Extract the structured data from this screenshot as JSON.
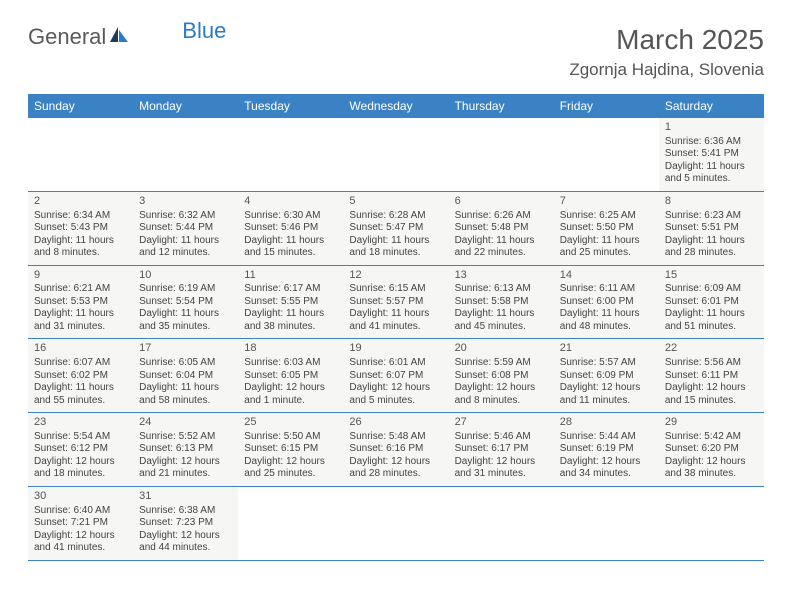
{
  "logo": {
    "part1": "General",
    "part2": "Blue"
  },
  "title": "March 2025",
  "location": "Zgornja Hajdina, Slovenia",
  "colors": {
    "header_bg": "#3b82c4",
    "header_fg": "#ffffff",
    "cell_bg": "#f6f6f5",
    "border": "#3b82c4",
    "text": "#444444",
    "title": "#555555"
  },
  "weekdays": [
    "Sunday",
    "Monday",
    "Tuesday",
    "Wednesday",
    "Thursday",
    "Friday",
    "Saturday"
  ],
  "weeks": [
    [
      null,
      null,
      null,
      null,
      null,
      null,
      {
        "n": "1",
        "sr": "Sunrise: 6:36 AM",
        "ss": "Sunset: 5:41 PM",
        "d1": "Daylight: 11 hours",
        "d2": "and 5 minutes."
      }
    ],
    [
      {
        "n": "2",
        "sr": "Sunrise: 6:34 AM",
        "ss": "Sunset: 5:43 PM",
        "d1": "Daylight: 11 hours",
        "d2": "and 8 minutes."
      },
      {
        "n": "3",
        "sr": "Sunrise: 6:32 AM",
        "ss": "Sunset: 5:44 PM",
        "d1": "Daylight: 11 hours",
        "d2": "and 12 minutes."
      },
      {
        "n": "4",
        "sr": "Sunrise: 6:30 AM",
        "ss": "Sunset: 5:46 PM",
        "d1": "Daylight: 11 hours",
        "d2": "and 15 minutes."
      },
      {
        "n": "5",
        "sr": "Sunrise: 6:28 AM",
        "ss": "Sunset: 5:47 PM",
        "d1": "Daylight: 11 hours",
        "d2": "and 18 minutes."
      },
      {
        "n": "6",
        "sr": "Sunrise: 6:26 AM",
        "ss": "Sunset: 5:48 PM",
        "d1": "Daylight: 11 hours",
        "d2": "and 22 minutes."
      },
      {
        "n": "7",
        "sr": "Sunrise: 6:25 AM",
        "ss": "Sunset: 5:50 PM",
        "d1": "Daylight: 11 hours",
        "d2": "and 25 minutes."
      },
      {
        "n": "8",
        "sr": "Sunrise: 6:23 AM",
        "ss": "Sunset: 5:51 PM",
        "d1": "Daylight: 11 hours",
        "d2": "and 28 minutes."
      }
    ],
    [
      {
        "n": "9",
        "sr": "Sunrise: 6:21 AM",
        "ss": "Sunset: 5:53 PM",
        "d1": "Daylight: 11 hours",
        "d2": "and 31 minutes."
      },
      {
        "n": "10",
        "sr": "Sunrise: 6:19 AM",
        "ss": "Sunset: 5:54 PM",
        "d1": "Daylight: 11 hours",
        "d2": "and 35 minutes."
      },
      {
        "n": "11",
        "sr": "Sunrise: 6:17 AM",
        "ss": "Sunset: 5:55 PM",
        "d1": "Daylight: 11 hours",
        "d2": "and 38 minutes."
      },
      {
        "n": "12",
        "sr": "Sunrise: 6:15 AM",
        "ss": "Sunset: 5:57 PM",
        "d1": "Daylight: 11 hours",
        "d2": "and 41 minutes."
      },
      {
        "n": "13",
        "sr": "Sunrise: 6:13 AM",
        "ss": "Sunset: 5:58 PM",
        "d1": "Daylight: 11 hours",
        "d2": "and 45 minutes."
      },
      {
        "n": "14",
        "sr": "Sunrise: 6:11 AM",
        "ss": "Sunset: 6:00 PM",
        "d1": "Daylight: 11 hours",
        "d2": "and 48 minutes."
      },
      {
        "n": "15",
        "sr": "Sunrise: 6:09 AM",
        "ss": "Sunset: 6:01 PM",
        "d1": "Daylight: 11 hours",
        "d2": "and 51 minutes."
      }
    ],
    [
      {
        "n": "16",
        "sr": "Sunrise: 6:07 AM",
        "ss": "Sunset: 6:02 PM",
        "d1": "Daylight: 11 hours",
        "d2": "and 55 minutes."
      },
      {
        "n": "17",
        "sr": "Sunrise: 6:05 AM",
        "ss": "Sunset: 6:04 PM",
        "d1": "Daylight: 11 hours",
        "d2": "and 58 minutes."
      },
      {
        "n": "18",
        "sr": "Sunrise: 6:03 AM",
        "ss": "Sunset: 6:05 PM",
        "d1": "Daylight: 12 hours",
        "d2": "and 1 minute."
      },
      {
        "n": "19",
        "sr": "Sunrise: 6:01 AM",
        "ss": "Sunset: 6:07 PM",
        "d1": "Daylight: 12 hours",
        "d2": "and 5 minutes."
      },
      {
        "n": "20",
        "sr": "Sunrise: 5:59 AM",
        "ss": "Sunset: 6:08 PM",
        "d1": "Daylight: 12 hours",
        "d2": "and 8 minutes."
      },
      {
        "n": "21",
        "sr": "Sunrise: 5:57 AM",
        "ss": "Sunset: 6:09 PM",
        "d1": "Daylight: 12 hours",
        "d2": "and 11 minutes."
      },
      {
        "n": "22",
        "sr": "Sunrise: 5:56 AM",
        "ss": "Sunset: 6:11 PM",
        "d1": "Daylight: 12 hours",
        "d2": "and 15 minutes."
      }
    ],
    [
      {
        "n": "23",
        "sr": "Sunrise: 5:54 AM",
        "ss": "Sunset: 6:12 PM",
        "d1": "Daylight: 12 hours",
        "d2": "and 18 minutes."
      },
      {
        "n": "24",
        "sr": "Sunrise: 5:52 AM",
        "ss": "Sunset: 6:13 PM",
        "d1": "Daylight: 12 hours",
        "d2": "and 21 minutes."
      },
      {
        "n": "25",
        "sr": "Sunrise: 5:50 AM",
        "ss": "Sunset: 6:15 PM",
        "d1": "Daylight: 12 hours",
        "d2": "and 25 minutes."
      },
      {
        "n": "26",
        "sr": "Sunrise: 5:48 AM",
        "ss": "Sunset: 6:16 PM",
        "d1": "Daylight: 12 hours",
        "d2": "and 28 minutes."
      },
      {
        "n": "27",
        "sr": "Sunrise: 5:46 AM",
        "ss": "Sunset: 6:17 PM",
        "d1": "Daylight: 12 hours",
        "d2": "and 31 minutes."
      },
      {
        "n": "28",
        "sr": "Sunrise: 5:44 AM",
        "ss": "Sunset: 6:19 PM",
        "d1": "Daylight: 12 hours",
        "d2": "and 34 minutes."
      },
      {
        "n": "29",
        "sr": "Sunrise: 5:42 AM",
        "ss": "Sunset: 6:20 PM",
        "d1": "Daylight: 12 hours",
        "d2": "and 38 minutes."
      }
    ],
    [
      {
        "n": "30",
        "sr": "Sunrise: 6:40 AM",
        "ss": "Sunset: 7:21 PM",
        "d1": "Daylight: 12 hours",
        "d2": "and 41 minutes."
      },
      {
        "n": "31",
        "sr": "Sunrise: 6:38 AM",
        "ss": "Sunset: 7:23 PM",
        "d1": "Daylight: 12 hours",
        "d2": "and 44 minutes."
      },
      null,
      null,
      null,
      null,
      null
    ]
  ]
}
